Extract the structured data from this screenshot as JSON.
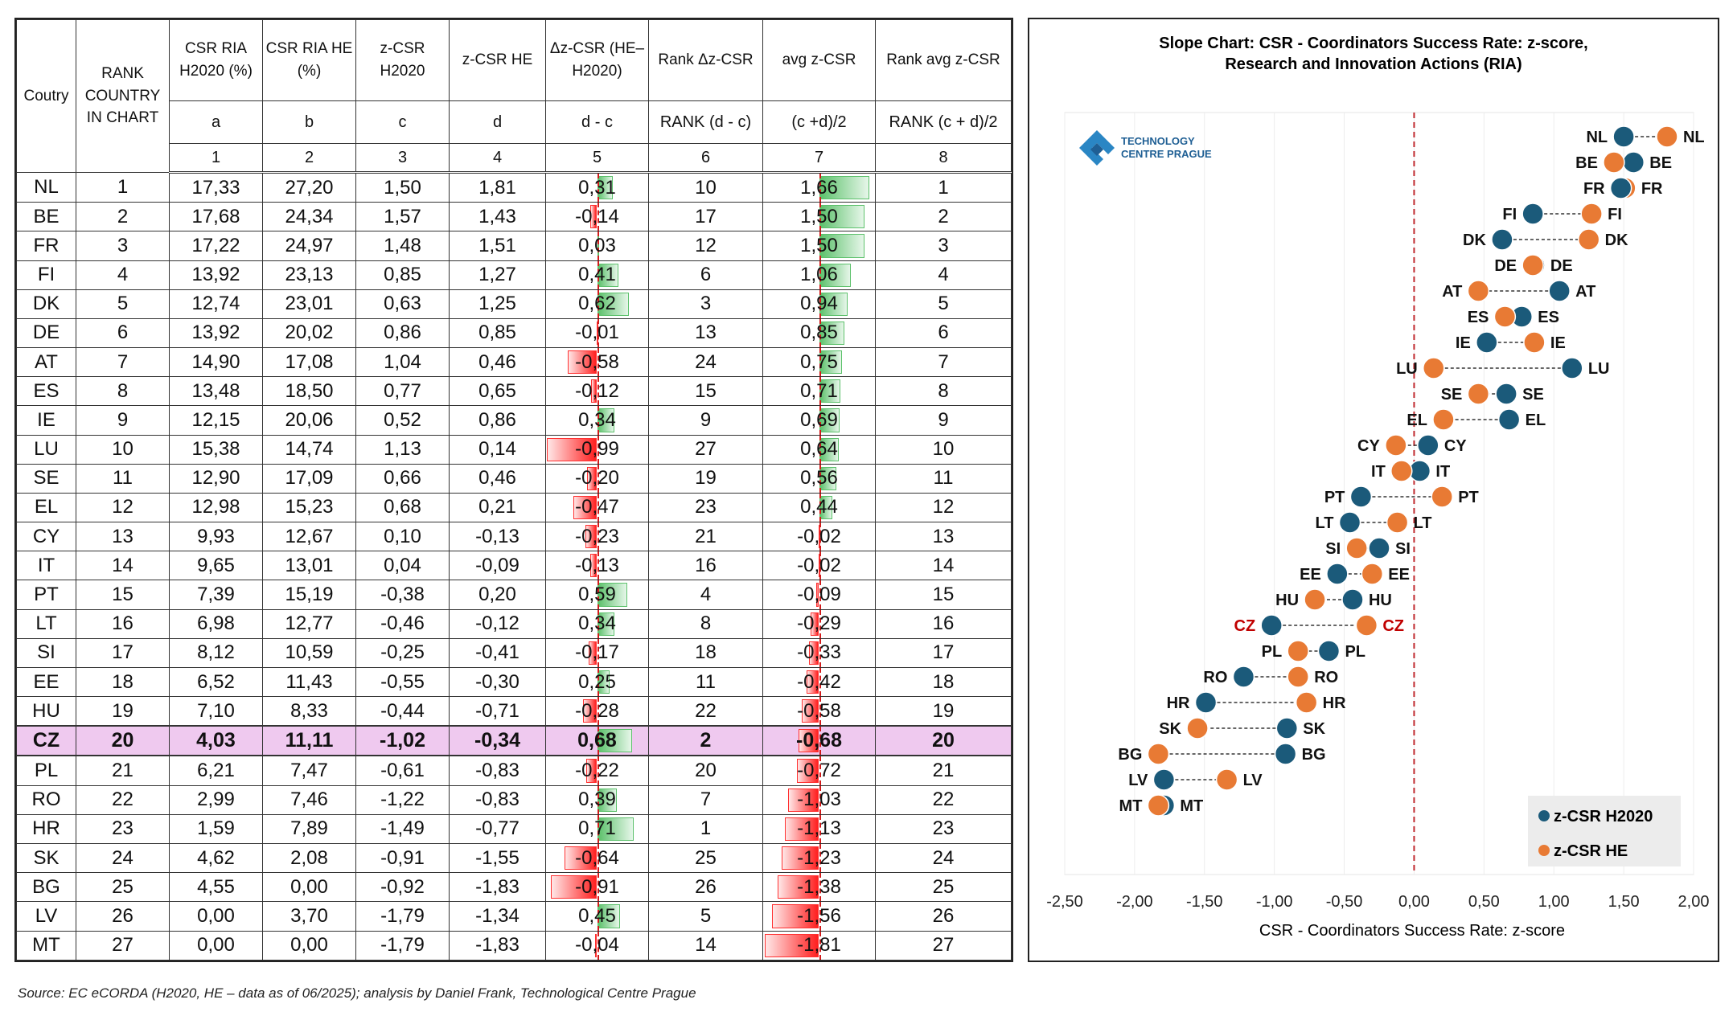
{
  "table": {
    "header": {
      "country": "Coutry",
      "rank_country": "RANK COUNTRY IN CHART",
      "csr_h2020": "CSR RIA H2020 (%)",
      "csr_he": "CSR RIA HE (%)",
      "z_h2020": "z-CSR H2020",
      "z_he": "z-CSR HE",
      "dz": "Δz-CSR (HE–H2020)",
      "rank_dz": "Rank Δz-CSR",
      "avg": "avg z-CSR",
      "rank_avg": "Rank avg z-CSR"
    },
    "letters": [
      "a",
      "b",
      "c",
      "d",
      "d - c",
      "RANK (d - c)",
      "(c +d)/2",
      "RANK (c + d)/2"
    ],
    "numbers": [
      "1",
      "2",
      "3",
      "4",
      "5",
      "6",
      "7",
      "8"
    ],
    "highlight_country": "CZ",
    "rows": [
      {
        "code": "NL",
        "rank": "1",
        "csr_h2020": "17,33",
        "csr_he": "27,20",
        "z_h2020": "1,50",
        "z_he": "1,81",
        "dz": "0,31",
        "dz_val": 0.31,
        "rank_dz": "10",
        "avg": "1,66",
        "avg_val": 1.66,
        "rank_avg": "1"
      },
      {
        "code": "BE",
        "rank": "2",
        "csr_h2020": "17,68",
        "csr_he": "24,34",
        "z_h2020": "1,57",
        "z_he": "1,43",
        "dz": "-0,14",
        "dz_val": -0.14,
        "rank_dz": "17",
        "avg": "1,50",
        "avg_val": 1.5,
        "rank_avg": "2"
      },
      {
        "code": "FR",
        "rank": "3",
        "csr_h2020": "17,22",
        "csr_he": "24,97",
        "z_h2020": "1,48",
        "z_he": "1,51",
        "dz": "0,03",
        "dz_val": 0.03,
        "rank_dz": "12",
        "avg": "1,50",
        "avg_val": 1.5,
        "rank_avg": "3"
      },
      {
        "code": "FI",
        "rank": "4",
        "csr_h2020": "13,92",
        "csr_he": "23,13",
        "z_h2020": "0,85",
        "z_he": "1,27",
        "dz": "0,41",
        "dz_val": 0.41,
        "rank_dz": "6",
        "avg": "1,06",
        "avg_val": 1.06,
        "rank_avg": "4"
      },
      {
        "code": "DK",
        "rank": "5",
        "csr_h2020": "12,74",
        "csr_he": "23,01",
        "z_h2020": "0,63",
        "z_he": "1,25",
        "dz": "0,62",
        "dz_val": 0.62,
        "rank_dz": "3",
        "avg": "0,94",
        "avg_val": 0.94,
        "rank_avg": "5"
      },
      {
        "code": "DE",
        "rank": "6",
        "csr_h2020": "13,92",
        "csr_he": "20,02",
        "z_h2020": "0,86",
        "z_he": "0,85",
        "dz": "-0,01",
        "dz_val": -0.01,
        "rank_dz": "13",
        "avg": "0,85",
        "avg_val": 0.85,
        "rank_avg": "6"
      },
      {
        "code": "AT",
        "rank": "7",
        "csr_h2020": "14,90",
        "csr_he": "17,08",
        "z_h2020": "1,04",
        "z_he": "0,46",
        "dz": "-0,58",
        "dz_val": -0.58,
        "rank_dz": "24",
        "avg": "0,75",
        "avg_val": 0.75,
        "rank_avg": "7"
      },
      {
        "code": "ES",
        "rank": "8",
        "csr_h2020": "13,48",
        "csr_he": "18,50",
        "z_h2020": "0,77",
        "z_he": "0,65",
        "dz": "-0,12",
        "dz_val": -0.12,
        "rank_dz": "15",
        "avg": "0,71",
        "avg_val": 0.71,
        "rank_avg": "8"
      },
      {
        "code": "IE",
        "rank": "9",
        "csr_h2020": "12,15",
        "csr_he": "20,06",
        "z_h2020": "0,52",
        "z_he": "0,86",
        "dz": "0,34",
        "dz_val": 0.34,
        "rank_dz": "9",
        "avg": "0,69",
        "avg_val": 0.69,
        "rank_avg": "9"
      },
      {
        "code": "LU",
        "rank": "10",
        "csr_h2020": "15,38",
        "csr_he": "14,74",
        "z_h2020": "1,13",
        "z_he": "0,14",
        "dz": "-0,99",
        "dz_val": -0.99,
        "rank_dz": "27",
        "avg": "0,64",
        "avg_val": 0.64,
        "rank_avg": "10"
      },
      {
        "code": "SE",
        "rank": "11",
        "csr_h2020": "12,90",
        "csr_he": "17,09",
        "z_h2020": "0,66",
        "z_he": "0,46",
        "dz": "-0,20",
        "dz_val": -0.2,
        "rank_dz": "19",
        "avg": "0,56",
        "avg_val": 0.56,
        "rank_avg": "11"
      },
      {
        "code": "EL",
        "rank": "12",
        "csr_h2020": "12,98",
        "csr_he": "15,23",
        "z_h2020": "0,68",
        "z_he": "0,21",
        "dz": "-0,47",
        "dz_val": -0.47,
        "rank_dz": "23",
        "avg": "0,44",
        "avg_val": 0.44,
        "rank_avg": "12"
      },
      {
        "code": "CY",
        "rank": "13",
        "csr_h2020": "9,93",
        "csr_he": "12,67",
        "z_h2020": "0,10",
        "z_he": "-0,13",
        "dz": "-0,23",
        "dz_val": -0.23,
        "rank_dz": "21",
        "avg": "-0,02",
        "avg_val": -0.02,
        "rank_avg": "13"
      },
      {
        "code": "IT",
        "rank": "14",
        "csr_h2020": "9,65",
        "csr_he": "13,01",
        "z_h2020": "0,04",
        "z_he": "-0,09",
        "dz": "-0,13",
        "dz_val": -0.13,
        "rank_dz": "16",
        "avg": "-0,02",
        "avg_val": -0.02,
        "rank_avg": "14"
      },
      {
        "code": "PT",
        "rank": "15",
        "csr_h2020": "7,39",
        "csr_he": "15,19",
        "z_h2020": "-0,38",
        "z_he": "0,20",
        "dz": "0,59",
        "dz_val": 0.59,
        "rank_dz": "4",
        "avg": "-0,09",
        "avg_val": -0.09,
        "rank_avg": "15"
      },
      {
        "code": "LT",
        "rank": "16",
        "csr_h2020": "6,98",
        "csr_he": "12,77",
        "z_h2020": "-0,46",
        "z_he": "-0,12",
        "dz": "0,34",
        "dz_val": 0.34,
        "rank_dz": "8",
        "avg": "-0,29",
        "avg_val": -0.29,
        "rank_avg": "16"
      },
      {
        "code": "SI",
        "rank": "17",
        "csr_h2020": "8,12",
        "csr_he": "10,59",
        "z_h2020": "-0,25",
        "z_he": "-0,41",
        "dz": "-0,17",
        "dz_val": -0.17,
        "rank_dz": "18",
        "avg": "-0,33",
        "avg_val": -0.33,
        "rank_avg": "17"
      },
      {
        "code": "EE",
        "rank": "18",
        "csr_h2020": "6,52",
        "csr_he": "11,43",
        "z_h2020": "-0,55",
        "z_he": "-0,30",
        "dz": "0,25",
        "dz_val": 0.25,
        "rank_dz": "11",
        "avg": "-0,42",
        "avg_val": -0.42,
        "rank_avg": "18"
      },
      {
        "code": "HU",
        "rank": "19",
        "csr_h2020": "7,10",
        "csr_he": "8,33",
        "z_h2020": "-0,44",
        "z_he": "-0,71",
        "dz": "-0,28",
        "dz_val": -0.28,
        "rank_dz": "22",
        "avg": "-0,58",
        "avg_val": -0.58,
        "rank_avg": "19"
      },
      {
        "code": "CZ",
        "rank": "20",
        "csr_h2020": "4,03",
        "csr_he": "11,11",
        "z_h2020": "-1,02",
        "z_he": "-0,34",
        "dz": "0,68",
        "dz_val": 0.68,
        "rank_dz": "2",
        "avg": "-0,68",
        "avg_val": -0.68,
        "rank_avg": "20"
      },
      {
        "code": "PL",
        "rank": "21",
        "csr_h2020": "6,21",
        "csr_he": "7,47",
        "z_h2020": "-0,61",
        "z_he": "-0,83",
        "dz": "-0,22",
        "dz_val": -0.22,
        "rank_dz": "20",
        "avg": "-0,72",
        "avg_val": -0.72,
        "rank_avg": "21"
      },
      {
        "code": "RO",
        "rank": "22",
        "csr_h2020": "2,99",
        "csr_he": "7,46",
        "z_h2020": "-1,22",
        "z_he": "-0,83",
        "dz": "0,39",
        "dz_val": 0.39,
        "rank_dz": "7",
        "avg": "-1,03",
        "avg_val": -1.03,
        "rank_avg": "22"
      },
      {
        "code": "HR",
        "rank": "23",
        "csr_h2020": "1,59",
        "csr_he": "7,89",
        "z_h2020": "-1,49",
        "z_he": "-0,77",
        "dz": "0,71",
        "dz_val": 0.71,
        "rank_dz": "1",
        "avg": "-1,13",
        "avg_val": -1.13,
        "rank_avg": "23"
      },
      {
        "code": "SK",
        "rank": "24",
        "csr_h2020": "4,62",
        "csr_he": "2,08",
        "z_h2020": "-0,91",
        "z_he": "-1,55",
        "dz": "-0,64",
        "dz_val": -0.64,
        "rank_dz": "25",
        "avg": "-1,23",
        "avg_val": -1.23,
        "rank_avg": "24"
      },
      {
        "code": "BG",
        "rank": "25",
        "csr_h2020": "4,55",
        "csr_he": "0,00",
        "z_h2020": "-0,92",
        "z_he": "-1,83",
        "dz": "-0,91",
        "dz_val": -0.91,
        "rank_dz": "26",
        "avg": "-1,38",
        "avg_val": -1.38,
        "rank_avg": "25"
      },
      {
        "code": "LV",
        "rank": "26",
        "csr_h2020": "0,00",
        "csr_he": "3,70",
        "z_h2020": "-1,79",
        "z_he": "-1,34",
        "dz": "0,45",
        "dz_val": 0.45,
        "rank_dz": "5",
        "avg": "-1,56",
        "avg_val": -1.56,
        "rank_avg": "26"
      },
      {
        "code": "MT",
        "rank": "27",
        "csr_h2020": "0,00",
        "csr_he": "0,00",
        "z_h2020": "-1,79",
        "z_he": "-1,83",
        "dz": "-0,04",
        "dz_val": -0.04,
        "rank_dz": "14",
        "avg": "-1,81",
        "avg_val": -1.81,
        "rank_avg": "27"
      }
    ]
  },
  "chart_data": {
    "type": "scatter",
    "subtype": "slope-dumbbell",
    "title": "Slope Chart: CSR - Coordinators Success Rate: z-score, Research and Innovation Actions (RIA)",
    "xlabel": "CSR - Coordinators Success Rate: z-score",
    "ylabel": "",
    "xlim": [
      -2.5,
      2.0
    ],
    "xticks": [
      -2.5,
      -2.0,
      -1.5,
      -1.0,
      -0.5,
      0.0,
      0.5,
      1.0,
      1.5,
      2.0
    ],
    "xtick_labels": [
      "-2,50",
      "-2,00",
      "-1,50",
      "-1,00",
      "-0,50",
      "0,00",
      "0,50",
      "1,00",
      "1,50",
      "2,00"
    ],
    "highlight": "CZ",
    "categories": [
      "NL",
      "BE",
      "FR",
      "FI",
      "DK",
      "DE",
      "AT",
      "ES",
      "IE",
      "LU",
      "SE",
      "EL",
      "CY",
      "IT",
      "PT",
      "LT",
      "SI",
      "EE",
      "HU",
      "CZ",
      "PL",
      "RO",
      "HR",
      "SK",
      "BG",
      "LV",
      "MT"
    ],
    "series": [
      {
        "name": "z-CSR H2020",
        "color": "#1b5a7a",
        "values": [
          1.5,
          1.57,
          1.48,
          0.85,
          0.63,
          0.86,
          1.04,
          0.77,
          0.52,
          1.13,
          0.66,
          0.68,
          0.1,
          0.04,
          -0.38,
          -0.46,
          -0.25,
          -0.55,
          -0.44,
          -1.02,
          -0.61,
          -1.22,
          -1.49,
          -0.91,
          -0.92,
          -1.79,
          -1.79
        ]
      },
      {
        "name": "z-CSR HE",
        "color": "#e87a34",
        "values": [
          1.81,
          1.43,
          1.51,
          1.27,
          1.25,
          0.85,
          0.46,
          0.65,
          0.86,
          0.14,
          0.46,
          0.21,
          -0.13,
          -0.09,
          0.2,
          -0.12,
          -0.41,
          -0.3,
          -0.71,
          -0.34,
          -0.83,
          -0.83,
          -0.77,
          -1.55,
          -1.83,
          -1.34,
          -1.83
        ]
      }
    ],
    "legend": "bottom-right",
    "logo_text": [
      "TECHNOLOGY",
      "CENTRE PRAGUE"
    ]
  },
  "source_note": "Source: EC eCORDA (H2020, HE – data as of 06/2025); analysis by Daniel Frank, Technological Centre Prague",
  "colors": {
    "h2020": "#1b5a7a",
    "he": "#e87a34",
    "highlight": "#c00000",
    "zero_line": "#c0282d"
  }
}
